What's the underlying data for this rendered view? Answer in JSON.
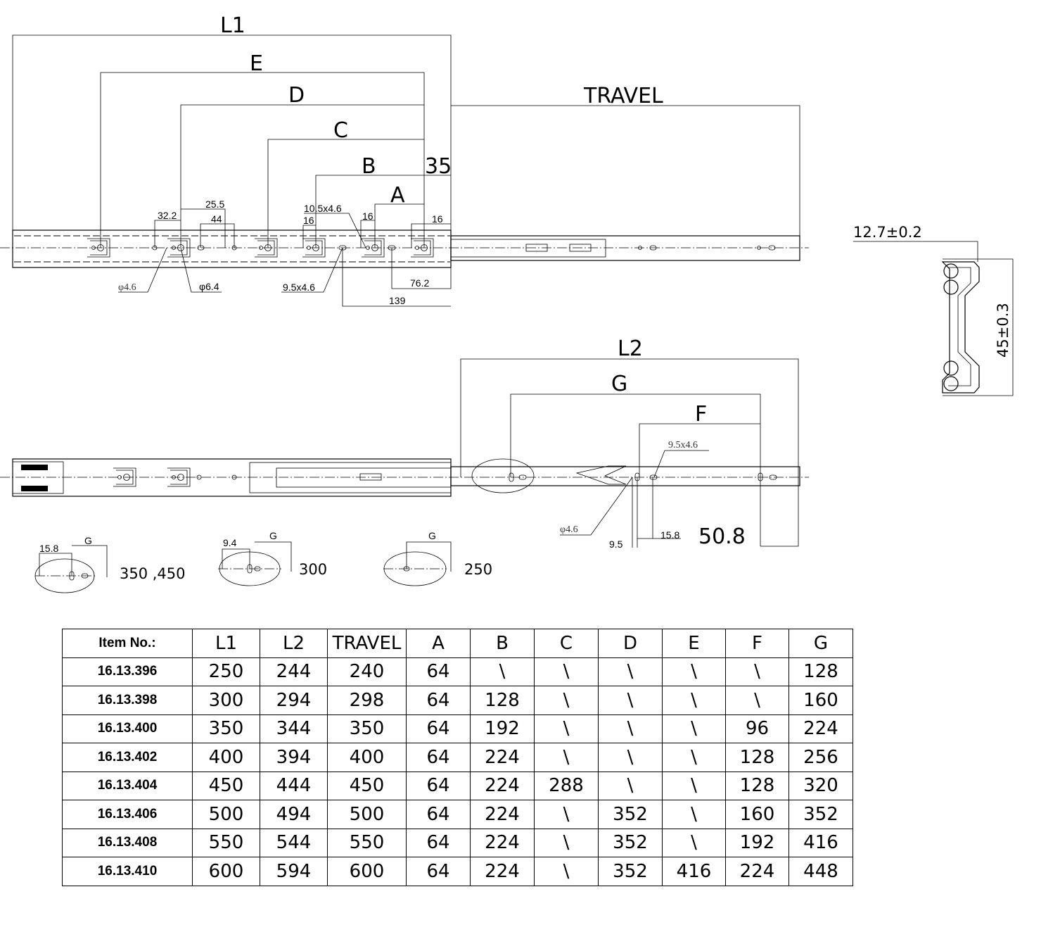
{
  "top_view": {
    "dims": {
      "L1": "L1",
      "E": "E",
      "D": "D",
      "C": "C",
      "B": "B",
      "A": "A",
      "travel": "TRAVEL",
      "d35": "35",
      "d32_2": "32.2",
      "d25_5": "25.5",
      "d44": "44",
      "slot_10_5": "10.5x4.6",
      "d16a": "16",
      "d16b": "16",
      "d16c": "16",
      "phi4_6": "φ4.6",
      "phi6_4": "φ6.4",
      "slot_9_5": "9.5x4.6",
      "d76_2": "76.2",
      "d139": "139"
    }
  },
  "profile": {
    "width": "12.7±0.2",
    "height": "45±0.3"
  },
  "bottom_view": {
    "dims": {
      "L2": "L2",
      "G": "G",
      "F": "F",
      "slot_9_5": "9.5x4.6",
      "phi4_6": "φ4.6",
      "d9_5": "9.5",
      "d15_8": "15.8",
      "d50_8": "50.8"
    }
  },
  "details": [
    {
      "offset": "15.8",
      "g": "G",
      "label": "350 ,450"
    },
    {
      "offset": "9.4",
      "g": "G",
      "label": "300"
    },
    {
      "g": "G",
      "label": "250"
    }
  ],
  "table": {
    "headers": [
      "Item No.:",
      "L1",
      "L2",
      "TRAVEL",
      "A",
      "B",
      "C",
      "D",
      "E",
      "F",
      "G"
    ],
    "rows": [
      [
        "16.13.396",
        "250",
        "244",
        "240",
        "64",
        "\\",
        "\\",
        "\\",
        "\\",
        "\\",
        "128"
      ],
      [
        "16.13.398",
        "300",
        "294",
        "298",
        "64",
        "128",
        "\\",
        "\\",
        "\\",
        "\\",
        "160"
      ],
      [
        "16.13.400",
        "350",
        "344",
        "350",
        "64",
        "192",
        "\\",
        "\\",
        "\\",
        "96",
        "224"
      ],
      [
        "16.13.402",
        "400",
        "394",
        "400",
        "64",
        "224",
        "\\",
        "\\",
        "\\",
        "128",
        "256"
      ],
      [
        "16.13.404",
        "450",
        "444",
        "450",
        "64",
        "224",
        "288",
        "\\",
        "\\",
        "128",
        "320"
      ],
      [
        "16.13.406",
        "500",
        "494",
        "500",
        "64",
        "224",
        "\\",
        "352",
        "\\",
        "160",
        "352"
      ],
      [
        "16.13.408",
        "550",
        "544",
        "550",
        "64",
        "224",
        "\\",
        "352",
        "\\",
        "192",
        "416"
      ],
      [
        "16.13.410",
        "600",
        "594",
        "600",
        "64",
        "224",
        "\\",
        "352",
        "416",
        "224",
        "448"
      ]
    ]
  }
}
